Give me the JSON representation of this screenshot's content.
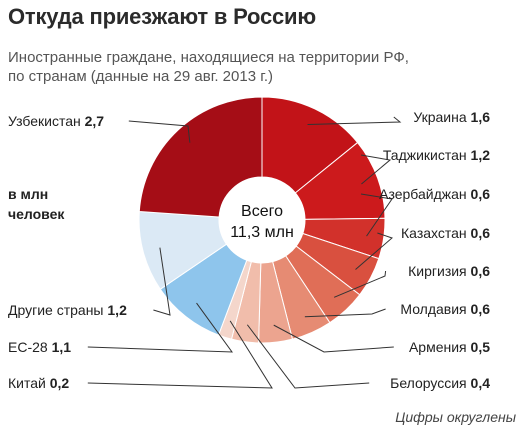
{
  "chart_data": {
    "type": "pie",
    "title": "Откуда приезжают в Россию",
    "subtitle_lines": [
      "Иностранные граждане, находящиеся на территории РФ,",
      "по странам (данные на 29 авг. 2013 г.)"
    ],
    "unit_lines": [
      "в млн",
      "человек"
    ],
    "center_lines": [
      "Всего",
      "11,3 млн"
    ],
    "footnote": "Цифры округлены",
    "slices": [
      {
        "label": "Украина",
        "value": 1.6,
        "value_label": "1,6",
        "color": "#c21318"
      },
      {
        "label": "Таджикистан",
        "value": 1.2,
        "value_label": "1,2",
        "color": "#cc1a1c"
      },
      {
        "label": "Азербайджан",
        "value": 0.6,
        "value_label": "0,6",
        "color": "#d2312b"
      },
      {
        "label": "Казахстан",
        "value": 0.6,
        "value_label": "0,6",
        "color": "#d9503f"
      },
      {
        "label": "Киргизия",
        "value": 0.6,
        "value_label": "0,6",
        "color": "#e06e57"
      },
      {
        "label": "Молдавия",
        "value": 0.6,
        "value_label": "0,6",
        "color": "#e68b73"
      },
      {
        "label": "Армения",
        "value": 0.5,
        "value_label": "0,5",
        "color": "#eca48f"
      },
      {
        "label": "Белоруссия",
        "value": 0.4,
        "value_label": "0,4",
        "color": "#f1bdab"
      },
      {
        "label": "Китай",
        "value": 0.2,
        "value_label": "0,2",
        "color": "#f4d6cb"
      },
      {
        "label": "ЕС-28",
        "value": 1.1,
        "value_label": "1,1",
        "color": "#8ec5ec"
      },
      {
        "label": "Другие страны",
        "value": 1.2,
        "value_label": "1,2",
        "color": "#dbe9f5"
      },
      {
        "label": "Узбекистан",
        "value": 2.7,
        "value_label": "2,7",
        "color": "#a50d16"
      }
    ]
  }
}
